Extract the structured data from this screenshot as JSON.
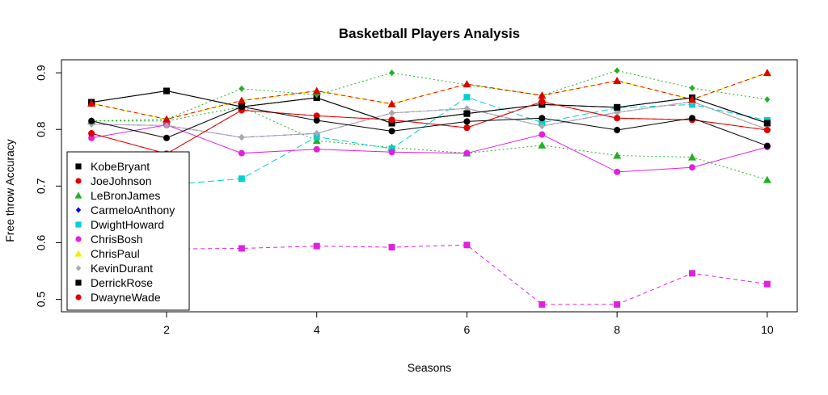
{
  "chart_data": {
    "type": "line",
    "title": "Basketball Players Analysis",
    "xlabel": "Seasons",
    "ylabel": "Free throw Accuracy",
    "xlim": [
      0.6,
      10.4
    ],
    "ylim": [
      0.478,
      0.923
    ],
    "x_ticks": [
      2,
      4,
      6,
      8,
      10
    ],
    "y_ticks": [
      0.5,
      0.6,
      0.7,
      0.8,
      0.9
    ],
    "x": [
      1,
      2,
      3,
      4,
      5,
      6,
      7,
      8,
      9,
      10
    ],
    "grid": false,
    "legend_position": "left",
    "series": [
      {
        "name": "KobeBryant",
        "color": "#000000",
        "marker": "square",
        "dash": "",
        "values": [
          0.848,
          0.868,
          0.84,
          0.856,
          0.811,
          0.828,
          0.844,
          0.839,
          0.856,
          0.811
        ]
      },
      {
        "name": "JoeJohnson",
        "color": "#df0000",
        "marker": "circle",
        "dash": "5,4",
        "values": [
          0.793,
          0.757,
          0.834,
          0.824,
          0.817,
          0.803,
          0.849,
          0.82,
          0.817,
          0.799
        ]
      },
      {
        "name": "LeBronJames",
        "color": "#22b022",
        "marker": "triangle",
        "dash": "2,3",
        "values": [
          0.815,
          0.815,
          0.84,
          0.78,
          0.768,
          0.758,
          0.772,
          0.754,
          0.751,
          0.711
        ]
      },
      {
        "name": "CarmeloAnthony",
        "color": "#0000e0",
        "marker": "diamond",
        "dash": "6,3,2,3",
        "values": [
          0.809,
          0.807,
          0.786,
          0.793,
          0.829,
          0.837,
          0.806,
          0.83,
          0.849,
          0.8
        ]
      },
      {
        "name": "DwightHoward",
        "color": "#00d0d0",
        "marker": "square",
        "dash": "8,4",
        "values": [
          0.702,
          0.702,
          0.713,
          0.787,
          0.766,
          0.857,
          0.812,
          0.838,
          0.844,
          0.816
        ]
      },
      {
        "name": "ChrisBosh",
        "color": "#e020e0",
        "marker": "circle",
        "dash": "",
        "values": [
          0.785,
          0.808,
          0.758,
          0.765,
          0.76,
          0.758,
          0.791,
          0.725,
          0.733,
          0.769
        ]
      },
      {
        "name": "ChrisPaul",
        "color": "#f0f000",
        "marker": "triangle",
        "dash": "",
        "values": [
          0.846,
          0.818,
          0.851,
          0.868,
          0.845,
          0.88,
          0.86,
          0.886,
          0.853,
          0.9
        ]
      },
      {
        "name": "KevinDurant",
        "color": "#aaaaaa",
        "marker": "diamond",
        "dash": "",
        "values": [
          0.809,
          0.807,
          0.786,
          0.793,
          0.829,
          0.837,
          0.806,
          0.83,
          0.849,
          0.8
        ]
      },
      {
        "name": "DerrickRose",
        "color": "#000000",
        "marker": "square",
        "dash": "",
        "values": [
          0.848,
          0.868,
          0.84,
          0.856,
          0.811,
          0.828,
          0.844,
          0.839,
          0.856,
          0.811
        ]
      },
      {
        "name": "DwayneWade",
        "color": "#df0000",
        "marker": "circle",
        "dash": "",
        "values": [
          0.793,
          0.757,
          0.834,
          0.824,
          0.817,
          0.803,
          0.849,
          0.82,
          0.817,
          0.799
        ]
      }
    ],
    "extra_series": [
      {
        "color": "#22b022",
        "marker": "diamond",
        "dash": "2,3",
        "values": [
          0.815,
          0.818,
          0.872,
          0.861,
          0.9,
          0.879,
          0.86,
          0.904,
          0.873,
          0.853
        ]
      },
      {
        "color": "#df0000",
        "marker": "triangle",
        "dash": "5,4",
        "values": [
          0.846,
          0.818,
          0.851,
          0.868,
          0.845,
          0.88,
          0.86,
          0.886,
          0.853,
          0.9
        ]
      },
      {
        "color": "#000000",
        "marker": "circle",
        "dash": "",
        "values": [
          0.815,
          0.785,
          0.84,
          0.816,
          0.797,
          0.814,
          0.82,
          0.799,
          0.82,
          0.771
        ]
      },
      {
        "color": "#e020e0",
        "marker": "square",
        "dash": "5,4",
        "values": [
          0.589,
          0.589,
          0.59,
          0.594,
          0.592,
          0.596,
          0.491,
          0.491,
          0.546,
          0.527
        ]
      }
    ]
  }
}
